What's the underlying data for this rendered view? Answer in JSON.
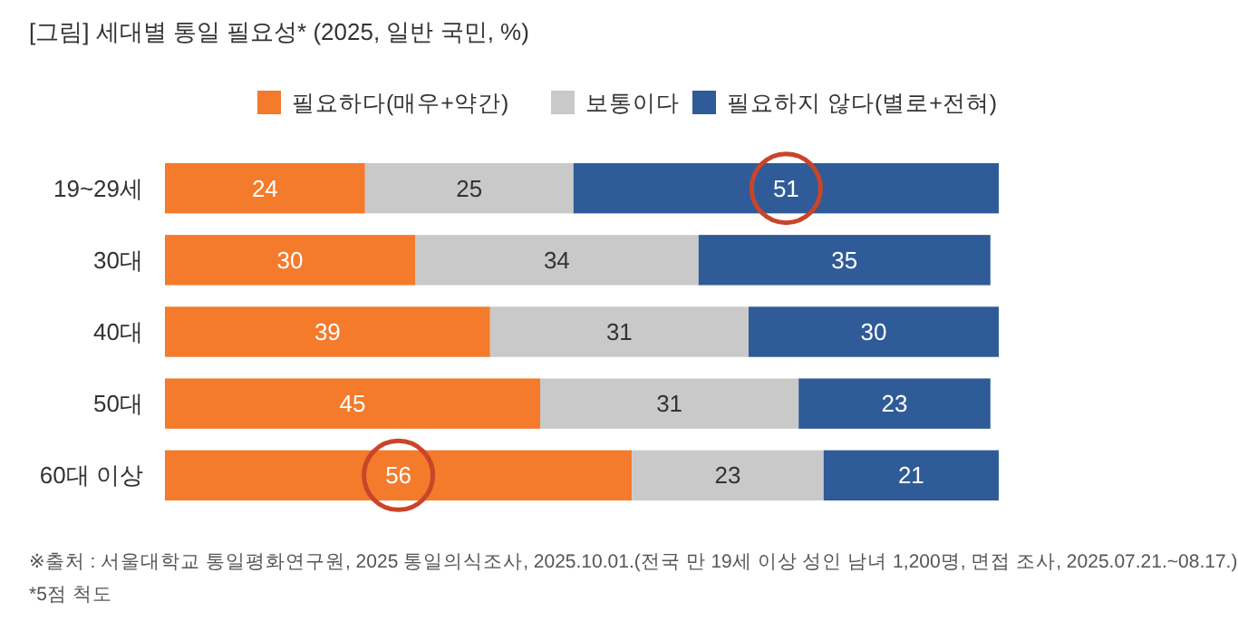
{
  "chart_data": {
    "type": "bar",
    "orientation": "horizontal",
    "stacked": true,
    "title": "[그림] 세대별 통일 필요성* (2025, 일반 국민, %)",
    "categories": [
      "19~29세",
      "30대",
      "40대",
      "50대",
      "60대 이상"
    ],
    "series": [
      {
        "name": "필요하다(매우+약간)",
        "color": "#f47a2c",
        "values": [
          24,
          30,
          39,
          45,
          56
        ]
      },
      {
        "name": "보통이다",
        "color": "#c9c9c9",
        "values": [
          25,
          34,
          31,
          31,
          23
        ]
      },
      {
        "name": "필요하지 않다(별로+전혀)",
        "color": "#2f5b98",
        "values": [
          51,
          35,
          30,
          23,
          21
        ]
      }
    ],
    "xlim": [
      0,
      100
    ],
    "tick_labels": "y",
    "data_labels": true,
    "legend": "top",
    "grid": false,
    "annotations": [
      "※출처 : 서울대학교 통일평화연구원, 2025 통일의식조사, 2025.10.01.(전국 만 19세 이상 성인 남녀 1,200명, 면접 조사, 2025.07.21.~08.17.)",
      "*5점 척도"
    ]
  }
}
